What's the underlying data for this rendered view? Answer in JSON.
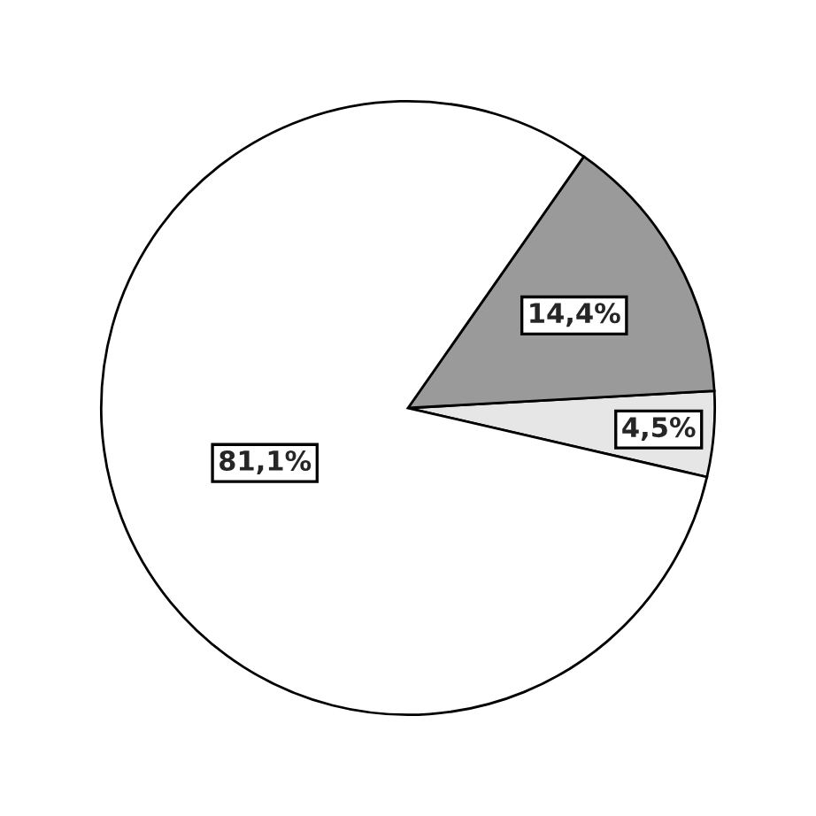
{
  "chart_data": {
    "type": "pie",
    "categories": [
      null,
      null,
      null
    ],
    "values": [
      4.5,
      14.4,
      81.1
    ],
    "colors": [
      "#e6e6e6",
      "#9a9a9a",
      "#ffffff"
    ],
    "value_labels": [
      "4,5%",
      "14,4%",
      "81,1%"
    ]
  }
}
